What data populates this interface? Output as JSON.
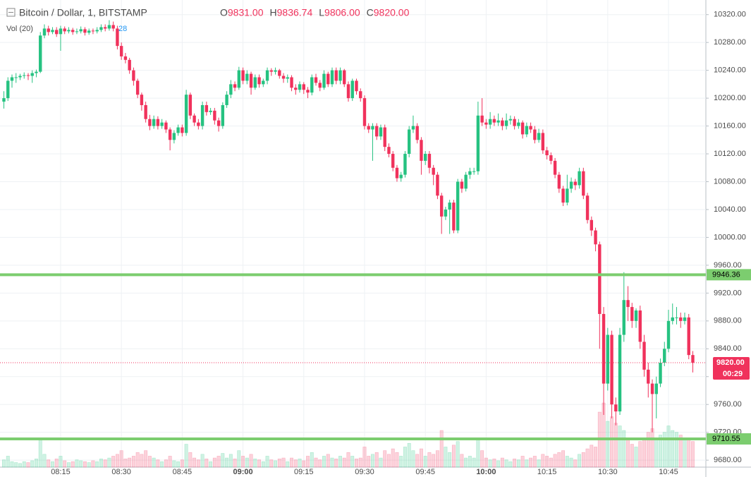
{
  "chart_data": {
    "type": "candlestick",
    "title": "Bitcoin / Dollar, 1, BITSTAMP",
    "ohlc_legend": [
      {
        "key": "O",
        "value": "9831.00"
      },
      {
        "key": "H",
        "value": "9836.74"
      },
      {
        "key": "L",
        "value": "9806.00"
      },
      {
        "key": "C",
        "value": "9820.00"
      }
    ],
    "volume_title": "Vol (20)",
    "volume_last": "28",
    "up_color": "#26c281",
    "down_color": "#f0325c",
    "grid": true,
    "ylim": [
      9670,
      10341
    ],
    "yticks": [
      {
        "value": 9680,
        "label": "9680.00"
      },
      {
        "value": 9720,
        "label": "9720.00"
      },
      {
        "value": 9760,
        "label": "9760.00"
      },
      {
        "value": 9800,
        "label": "9800.00"
      },
      {
        "value": 9840,
        "label": "9840.00"
      },
      {
        "value": 9880,
        "label": "9880.00"
      },
      {
        "value": 9920,
        "label": "9920.00"
      },
      {
        "value": 9960,
        "label": "9960.00"
      },
      {
        "value": 10000,
        "label": "10000.00"
      },
      {
        "value": 10040,
        "label": "10040.00"
      },
      {
        "value": 10080,
        "label": "10080.00"
      },
      {
        "value": 10120,
        "label": "10120.00"
      },
      {
        "value": 10160,
        "label": "10160.00"
      },
      {
        "value": 10200,
        "label": "10200.00"
      },
      {
        "value": 10240,
        "label": "10240.00"
      },
      {
        "value": 10280,
        "label": "10280.00"
      },
      {
        "value": 10320,
        "label": "10320.00"
      }
    ],
    "levels": [
      {
        "value": 9946.36,
        "label": "9946.36",
        "color": "#7ccd6f"
      },
      {
        "value": 9710.55,
        "label": "9710.55",
        "color": "#7ccd6f"
      }
    ],
    "last": {
      "value": 9820,
      "label": "9820.00",
      "countdown": "00:29",
      "color": "#f0325c"
    },
    "categories": [
      null,
      null,
      null,
      null,
      null,
      null,
      null,
      null,
      null,
      null,
      null,
      null,
      null,
      null,
      "08:15",
      null,
      null,
      null,
      null,
      null,
      null,
      null,
      null,
      null,
      null,
      null,
      null,
      null,
      null,
      "08:30",
      null,
      null,
      null,
      null,
      null,
      null,
      null,
      null,
      null,
      null,
      null,
      null,
      null,
      null,
      "08:45",
      null,
      null,
      null,
      null,
      null,
      null,
      null,
      null,
      null,
      null,
      null,
      null,
      null,
      null,
      "09:00",
      null,
      null,
      null,
      null,
      null,
      null,
      null,
      null,
      null,
      null,
      null,
      null,
      null,
      null,
      "09:15",
      null,
      null,
      null,
      null,
      null,
      null,
      null,
      null,
      null,
      null,
      null,
      null,
      null,
      null,
      "09:30",
      null,
      null,
      null,
      null,
      null,
      null,
      null,
      null,
      null,
      null,
      null,
      null,
      null,
      null,
      "09:45",
      null,
      null,
      null,
      null,
      null,
      null,
      null,
      null,
      null,
      null,
      null,
      null,
      null,
      null,
      "10:00",
      null,
      null,
      null,
      null,
      null,
      null,
      null,
      null,
      null,
      null,
      null,
      null,
      null,
      null,
      "10:15",
      null,
      null,
      null,
      null,
      null,
      null,
      null,
      null,
      null,
      null,
      null,
      null,
      null,
      null,
      "10:30",
      null,
      null,
      null,
      null,
      null,
      null,
      null,
      null,
      null,
      null,
      null,
      null,
      null,
      null,
      "10:45",
      null,
      null,
      null,
      null,
      null,
      null
    ],
    "open": [
      10195,
      10200,
      10225,
      10230,
      10230,
      10232,
      10233,
      10232,
      10236,
      10238,
      10290,
      10300,
      10295,
      10298,
      10292,
      10300,
      10296,
      10298,
      10295,
      10296,
      10299,
      10294,
      10297,
      10296,
      10298,
      10302,
      10300,
      10305,
      10300,
      10275,
      10260,
      10255,
      10240,
      10225,
      10205,
      10190,
      10170,
      10160,
      10170,
      10160,
      10165,
      10155,
      10140,
      10150,
      10158,
      10150,
      10205,
      10175,
      10165,
      10160,
      10190,
      10180,
      10182,
      10168,
      10160,
      10190,
      10205,
      10220,
      10215,
      10240,
      10225,
      10235,
      10215,
      10230,
      10220,
      10225,
      10240,
      10238,
      10240,
      10232,
      10228,
      10230,
      10215,
      10212,
      10220,
      10212,
      10208,
      10230,
      10222,
      10215,
      10235,
      10220,
      10240,
      10225,
      10240,
      10220,
      10200,
      10225,
      10210,
      10200,
      10160,
      10155,
      10160,
      10145,
      10158,
      10130,
      10120,
      10100,
      10085,
      10090,
      10120,
      10155,
      10160,
      10140,
      10110,
      10120,
      10100,
      10090,
      10060,
      10030,
      10040,
      10050,
      10010,
      10080,
      10070,
      10090,
      10095,
      10095,
      10175,
      10165,
      10162,
      10170,
      10165,
      10168,
      10160,
      10168,
      10170,
      10160,
      10165,
      10148,
      10160,
      10155,
      10140,
      10150,
      10125,
      10118,
      10110,
      10090,
      10070,
      10050,
      10070,
      10080,
      10075,
      10095,
      10060,
      10025,
      10010,
      9990,
      9890,
      9790,
      9860,
      9760,
      9750,
      9860,
      9910,
      9900,
      9880,
      9895,
      9850,
      9810,
      9790,
      9775,
      9790,
      9820,
      9840,
      9880,
      9885,
      9885,
      9880,
      9885,
      9831
    ],
    "high": [
      10210,
      10230,
      10234,
      10236,
      10235,
      10237,
      10236,
      10240,
      10241,
      10295,
      10306,
      10304,
      10302,
      10302,
      10304,
      10303,
      10302,
      10301,
      10300,
      10303,
      10302,
      10300,
      10300,
      10302,
      10306,
      10306,
      10312,
      10310,
      10304,
      10280,
      10265,
      10258,
      10244,
      10228,
      10208,
      10195,
      10176,
      10175,
      10174,
      10170,
      10168,
      10158,
      10154,
      10162,
      10162,
      10212,
      10208,
      10178,
      10170,
      10195,
      10195,
      10186,
      10186,
      10172,
      10194,
      10210,
      10226,
      10224,
      10245,
      10244,
      10240,
      10238,
      10234,
      10234,
      10228,
      10244,
      10243,
      10244,
      10242,
      10236,
      10234,
      10233,
      10220,
      10224,
      10223,
      10216,
      10234,
      10235,
      10226,
      10240,
      10238,
      10244,
      10244,
      10244,
      10242,
      10224,
      10228,
      10228,
      10214,
      10204,
      10164,
      10164,
      10164,
      10162,
      10162,
      10135,
      10124,
      10104,
      10094,
      10124,
      10160,
      10175,
      10164,
      10144,
      10124,
      10124,
      10104,
      10094,
      10064,
      10044,
      10054,
      10054,
      10084,
      10084,
      10094,
      10100,
      10100,
      10195,
      10200,
      10170,
      10180,
      10175,
      10178,
      10172,
      10178,
      10175,
      10174,
      10170,
      10168,
      10165,
      10165,
      10160,
      10156,
      10155,
      10130,
      10122,
      10114,
      10094,
      10074,
      10090,
      10086,
      10084,
      10100,
      10100,
      10064,
      10030,
      10014,
      9994,
      9900,
      9870,
      9866,
      9770,
      9870,
      9950,
      9930,
      9906,
      9898,
      9902,
      9860,
      9820,
      9796,
      9800,
      9826,
      9850,
      9896,
      9905,
      9900,
      9892,
      9892,
      9890,
      9836.74
    ],
    "low": [
      10185,
      10196,
      10215,
      10222,
      10226,
      10228,
      10226,
      10222,
      10230,
      10236,
      10286,
      10290,
      10292,
      10288,
      10268,
      10292,
      10293,
      10291,
      10292,
      10293,
      10290,
      10291,
      10292,
      10293,
      10295,
      10296,
      10297,
      10296,
      10270,
      10255,
      10250,
      10235,
      10218,
      10200,
      10182,
      10165,
      10154,
      10156,
      10155,
      10156,
      10150,
      10125,
      10135,
      10146,
      10145,
      10146,
      10170,
      10160,
      10155,
      10155,
      10175,
      10176,
      10162,
      10152,
      10156,
      10186,
      10200,
      10210,
      10212,
      10220,
      10220,
      10205,
      10212,
      10215,
      10216,
      10220,
      10232,
      10234,
      10228,
      10222,
      10222,
      10210,
      10205,
      10208,
      10206,
      10200,
      10204,
      10218,
      10210,
      10212,
      10216,
      10216,
      10220,
      10220,
      10216,
      10195,
      10196,
      10205,
      10195,
      10155,
      10150,
      10110,
      10140,
      10140,
      10124,
      10115,
      10095,
      10080,
      10080,
      10086,
      10115,
      10150,
      10135,
      10090,
      10104,
      10092,
      10075,
      10055,
      10005,
      10025,
      10005,
      10006,
      10006,
      10064,
      10066,
      10084,
      10090,
      10090,
      10160,
      10156,
      10156,
      10160,
      10160,
      10154,
      10155,
      10162,
      10155,
      10156,
      10142,
      10144,
      10150,
      10135,
      10136,
      10120,
      10112,
      10105,
      10085,
      10064,
      10045,
      10046,
      10064,
      10068,
      10070,
      10055,
      10020,
      10002,
      9980,
      9840,
      9745,
      9780,
      9740,
      9730,
      9745,
      9850,
      9880,
      9870,
      9870,
      9840,
      9800,
      9770,
      9720,
      9740,
      9785,
      9815,
      9835,
      9875,
      9875,
      9870,
      9875,
      9825,
      9806
    ],
    "close": [
      10200,
      10225,
      10230,
      10230,
      10232,
      10233,
      10232,
      10236,
      10238,
      10290,
      10300,
      10295,
      10298,
      10292,
      10300,
      10296,
      10298,
      10295,
      10296,
      10299,
      10294,
      10297,
      10296,
      10298,
      10302,
      10300,
      10305,
      10300,
      10275,
      10260,
      10255,
      10240,
      10225,
      10205,
      10190,
      10170,
      10160,
      10170,
      10160,
      10165,
      10155,
      10140,
      10150,
      10158,
      10150,
      10205,
      10175,
      10165,
      10160,
      10190,
      10180,
      10182,
      10168,
      10160,
      10190,
      10205,
      10220,
      10215,
      10240,
      10225,
      10235,
      10215,
      10230,
      10220,
      10225,
      10240,
      10238,
      10240,
      10232,
      10228,
      10230,
      10215,
      10212,
      10220,
      10212,
      10208,
      10230,
      10222,
      10215,
      10235,
      10220,
      10240,
      10225,
      10240,
      10220,
      10200,
      10225,
      10210,
      10200,
      10160,
      10155,
      10160,
      10145,
      10158,
      10130,
      10120,
      10100,
      10085,
      10090,
      10120,
      10155,
      10160,
      10140,
      10110,
      10120,
      10100,
      10090,
      10060,
      10030,
      10040,
      10050,
      10010,
      10080,
      10070,
      10090,
      10095,
      10095,
      10175,
      10165,
      10162,
      10170,
      10165,
      10168,
      10160,
      10168,
      10170,
      10160,
      10165,
      10148,
      10160,
      10155,
      10140,
      10150,
      10125,
      10118,
      10110,
      10090,
      10070,
      10050,
      10070,
      10080,
      10075,
      10095,
      10060,
      10025,
      10010,
      9990,
      9890,
      9790,
      9860,
      9760,
      9750,
      9860,
      9910,
      9900,
      9880,
      9895,
      9850,
      9810,
      9790,
      9775,
      9790,
      9820,
      9840,
      9880,
      9885,
      9885,
      9880,
      9885,
      9831,
      9820
    ],
    "volume": [
      8,
      12,
      6,
      5,
      4,
      6,
      5,
      7,
      9,
      30,
      14,
      8,
      6,
      9,
      12,
      7,
      5,
      6,
      8,
      7,
      6,
      5,
      7,
      6,
      9,
      8,
      10,
      12,
      14,
      18,
      9,
      10,
      12,
      16,
      14,
      18,
      12,
      10,
      8,
      6,
      8,
      12,
      7,
      6,
      8,
      25,
      16,
      10,
      8,
      14,
      9,
      6,
      10,
      12,
      15,
      10,
      14,
      9,
      18,
      12,
      10,
      14,
      9,
      8,
      6,
      12,
      8,
      7,
      9,
      10,
      6,
      10,
      8,
      9,
      7,
      12,
      16,
      10,
      8,
      12,
      14,
      10,
      9,
      12,
      10,
      16,
      12,
      9,
      10,
      22,
      12,
      14,
      16,
      10,
      18,
      14,
      20,
      16,
      12,
      22,
      26,
      18,
      14,
      20,
      12,
      16,
      14,
      18,
      40,
      22,
      16,
      24,
      28,
      14,
      10,
      12,
      10,
      30,
      18,
      10,
      8,
      9,
      7,
      10,
      8,
      6,
      9,
      8,
      12,
      8,
      10,
      12,
      8,
      14,
      12,
      10,
      14,
      16,
      18,
      12,
      10,
      8,
      14,
      16,
      20,
      24,
      22,
      60,
      70,
      50,
      55,
      48,
      45,
      40,
      30,
      25,
      22,
      28,
      32,
      38,
      42,
      30,
      35,
      38,
      45,
      40,
      38,
      35,
      30,
      32,
      28
    ]
  }
}
